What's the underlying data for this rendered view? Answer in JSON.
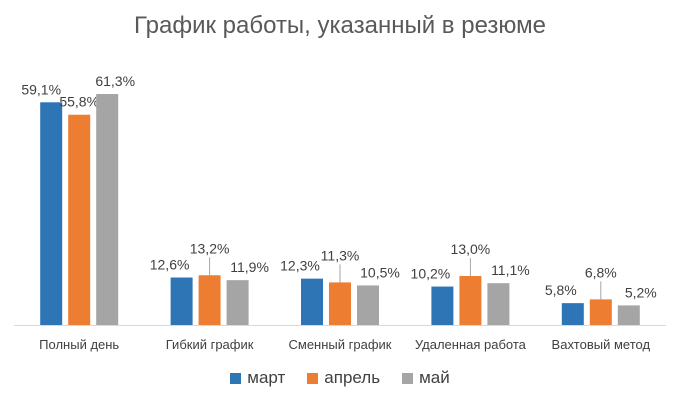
{
  "chart_data": {
    "type": "bar",
    "title": "График работы, указанный в резюме",
    "categories": [
      "Полный день",
      "Гибкий график",
      "Сменный график",
      "Удаленная работа",
      "Вахтовый метод"
    ],
    "series": [
      {
        "name": "март",
        "color": "#2E75B6",
        "values": [
          59.1,
          12.6,
          12.3,
          10.2,
          5.8
        ],
        "labels": [
          "59,1%",
          "12,6%",
          "12,3%",
          "10,2%",
          "5,8%"
        ]
      },
      {
        "name": "апрель",
        "color": "#ED7D31",
        "values": [
          55.8,
          13.2,
          11.3,
          13.0,
          6.8
        ],
        "labels": [
          "55,8%",
          "13,2%",
          "11,3%",
          "13,0%",
          "6,8%"
        ]
      },
      {
        "name": "май",
        "color": "#A5A5A5",
        "values": [
          61.3,
          11.9,
          10.5,
          11.1,
          5.2
        ],
        "labels": [
          "61,3%",
          "11,9%",
          "10,5%",
          "11,1%",
          "5,2%"
        ]
      }
    ],
    "ylim": [
      0,
      61.3
    ],
    "grid": false,
    "legend_position": "bottom"
  }
}
